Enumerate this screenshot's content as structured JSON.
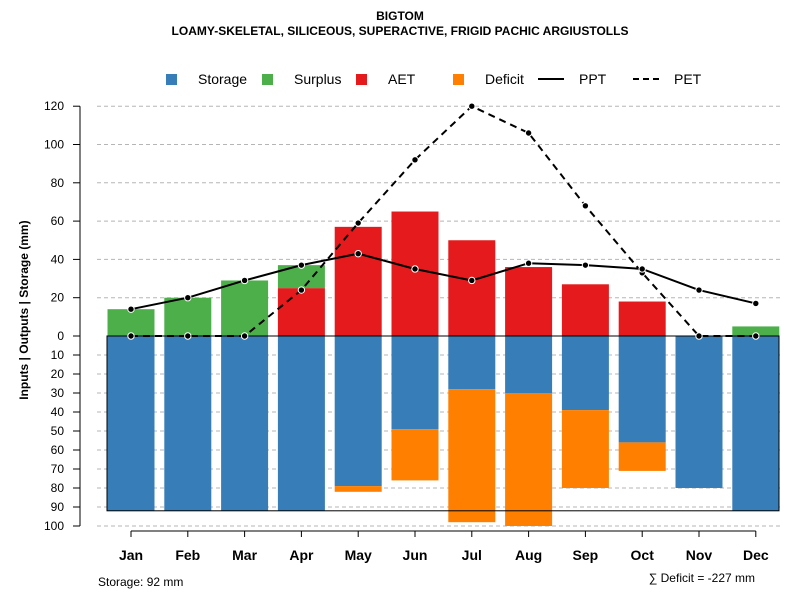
{
  "header": {
    "title": "BIGTOM",
    "subtitle": "LOAMY-SKELETAL, SILICEOUS, SUPERACTIVE, FRIGID PACHIC ARGIUSTOLLS"
  },
  "footer": {
    "storage_note": "Storage: 92 mm",
    "deficit_note": "∑ Deficit = -227 mm"
  },
  "colors": {
    "storage": "#377eb8",
    "surplus": "#4daf4a",
    "aet": "#e41a1c",
    "deficit": "#ff7f00"
  },
  "chart_data": {
    "type": "bar",
    "title": "BIGTOM",
    "subtitle": "LOAMY-SKELETAL, SILICEOUS, SUPERACTIVE, FRIGID PACHIC ARGIUSTOLLS",
    "ylabel": "Inputs | Outputs | Storage    (mm)",
    "categories": [
      "Jan",
      "Feb",
      "Mar",
      "Apr",
      "May",
      "Jun",
      "Jul",
      "Aug",
      "Sep",
      "Oct",
      "Nov",
      "Dec"
    ],
    "upper_ticks": [
      "0",
      "20",
      "40",
      "60",
      "80",
      "100",
      "120"
    ],
    "lower_ticks": [
      "10",
      "20",
      "30",
      "40",
      "50",
      "60",
      "70",
      "80",
      "90",
      "100"
    ],
    "ylim_upper": [
      0,
      125
    ],
    "ylim_lower": [
      0,
      100
    ],
    "legend": [
      {
        "label": "Storage",
        "kind": "box",
        "color": "#377eb8"
      },
      {
        "label": "Surplus",
        "kind": "box",
        "color": "#4daf4a"
      },
      {
        "label": "AET",
        "kind": "box",
        "color": "#e41a1c"
      },
      {
        "label": "Deficit",
        "kind": "box",
        "color": "#ff7f00"
      },
      {
        "label": "PPT",
        "kind": "solid"
      },
      {
        "label": "PET",
        "kind": "dashed"
      }
    ],
    "series": [
      {
        "name": "Surplus",
        "values": [
          14,
          20,
          29,
          12,
          0,
          0,
          0,
          0,
          0,
          0,
          0,
          5
        ]
      },
      {
        "name": "AET",
        "values": [
          0,
          0,
          0,
          25,
          57,
          65,
          50,
          36,
          27,
          18,
          0,
          0
        ]
      },
      {
        "name": "Storage",
        "values": [
          92,
          92,
          92,
          92,
          79,
          49,
          28,
          30,
          39,
          56,
          80,
          92
        ]
      },
      {
        "name": "Deficit",
        "values": [
          0,
          0,
          0,
          0,
          3,
          27,
          70,
          70,
          41,
          15,
          0,
          0
        ]
      },
      {
        "name": "PPT",
        "values": [
          14,
          20,
          29,
          37,
          43,
          35,
          29,
          38,
          37,
          35,
          24,
          17
        ]
      },
      {
        "name": "PET",
        "values": [
          0,
          0,
          0,
          24,
          59,
          92,
          120,
          106,
          68,
          33,
          0,
          0
        ]
      }
    ],
    "storage_capacity": 92,
    "storage_total": "92 mm",
    "deficit_total": "-227 mm"
  }
}
